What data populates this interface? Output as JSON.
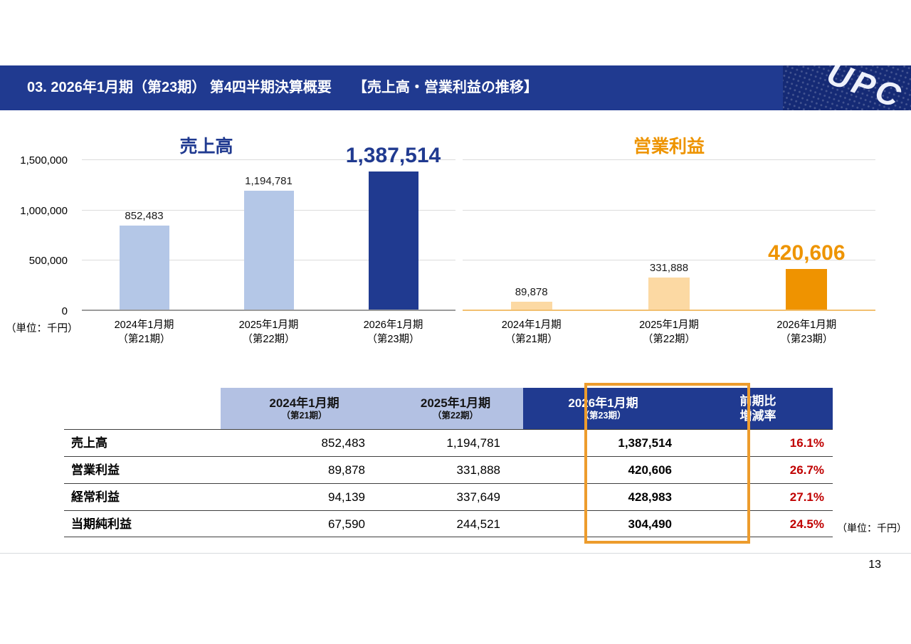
{
  "header": {
    "title": "03. 2026年1月期（第23期） 第4四半期決算概要　　【売上高・営業利益の推移】",
    "logo_text": "UPC",
    "bg_color": "#203a90"
  },
  "charts_unit_note": "（単位：千円）",
  "chart_data": [
    {
      "type": "bar",
      "title": "売上高",
      "title_color": "#203a90",
      "categories": [
        "2024年1月期\n（第21期）",
        "2025年1月期\n（第22期）",
        "2026年1月期\n（第23期）"
      ],
      "values": [
        852483,
        1194781,
        1387514
      ],
      "value_labels": [
        "852,483",
        "1,194,781",
        "1,387,514"
      ],
      "bar_colors": [
        "#b4c7e7",
        "#b4c7e7",
        "#203a90"
      ],
      "highlight_index": 2,
      "highlight_color": "#203a90",
      "xlabel": "",
      "ylabel": "千円",
      "ylim": [
        0,
        1500000
      ],
      "yticks": [
        0,
        500000,
        1000000,
        1500000
      ],
      "ytick_labels": [
        "0",
        "500,000",
        "1,000,000",
        "1,500,000"
      ],
      "show_yaxis": true,
      "baseline_color": "#9b9b9b",
      "grid": true,
      "legend": "none"
    },
    {
      "type": "bar",
      "title": "営業利益",
      "title_color": "#ee9400",
      "categories": [
        "2024年1月期\n（第21期）",
        "2025年1月期\n（第22期）",
        "2026年1月期\n（第23期）"
      ],
      "values": [
        89878,
        331888,
        420606
      ],
      "value_labels": [
        "89,878",
        "331,888",
        "420,606"
      ],
      "bar_colors": [
        "#fcd9a3",
        "#fcd9a3",
        "#ef9300"
      ],
      "highlight_index": 2,
      "highlight_color": "#ee9400",
      "xlabel": "",
      "ylabel": "千円",
      "ylim": [
        0,
        1500000
      ],
      "yticks": [
        0,
        500000,
        1000000,
        1500000
      ],
      "ytick_labels": [
        "0",
        "500,000",
        "1,000,000",
        "1,500,000"
      ],
      "show_yaxis": false,
      "baseline_color": "#f2c070",
      "grid": true,
      "legend": "none"
    }
  ],
  "table": {
    "col_headers": [
      {
        "line1": "",
        "line2": ""
      },
      {
        "line1": "2024年1月期",
        "line2": "（第21期）"
      },
      {
        "line1": "2025年1月期",
        "line2": "（第22期）"
      },
      {
        "line1": "2026年1月期",
        "line2": "（第23期）"
      },
      {
        "line1": "前期比",
        "line2": "増減率"
      }
    ],
    "rows": [
      {
        "label": "売上高",
        "values": [
          "852,483",
          "1,194,781",
          "1,387,514"
        ],
        "change": "16.1%"
      },
      {
        "label": "営業利益",
        "values": [
          "89,878",
          "331,888",
          "420,606"
        ],
        "change": "26.7%"
      },
      {
        "label": "経常利益",
        "values": [
          "94,139",
          "337,649",
          "428,983"
        ],
        "change": "27.1%"
      },
      {
        "label": "当期純利益",
        "values": [
          "67,590",
          "244,521",
          "304,490"
        ],
        "change": "24.5%"
      }
    ],
    "unit_note": "（単位：千円）",
    "highlight_color": "#ed9c2d",
    "change_color": "#c00000",
    "header_light_color": "#b3c1e3",
    "header_dark_color": "#203a90"
  },
  "footer": {
    "page_number": "13"
  },
  "colors": {
    "primary_blue": "#203a90",
    "light_blue": "#b4c7e7",
    "orange": "#ef9300",
    "light_orange": "#fcd9a3",
    "change_red": "#c00000"
  }
}
